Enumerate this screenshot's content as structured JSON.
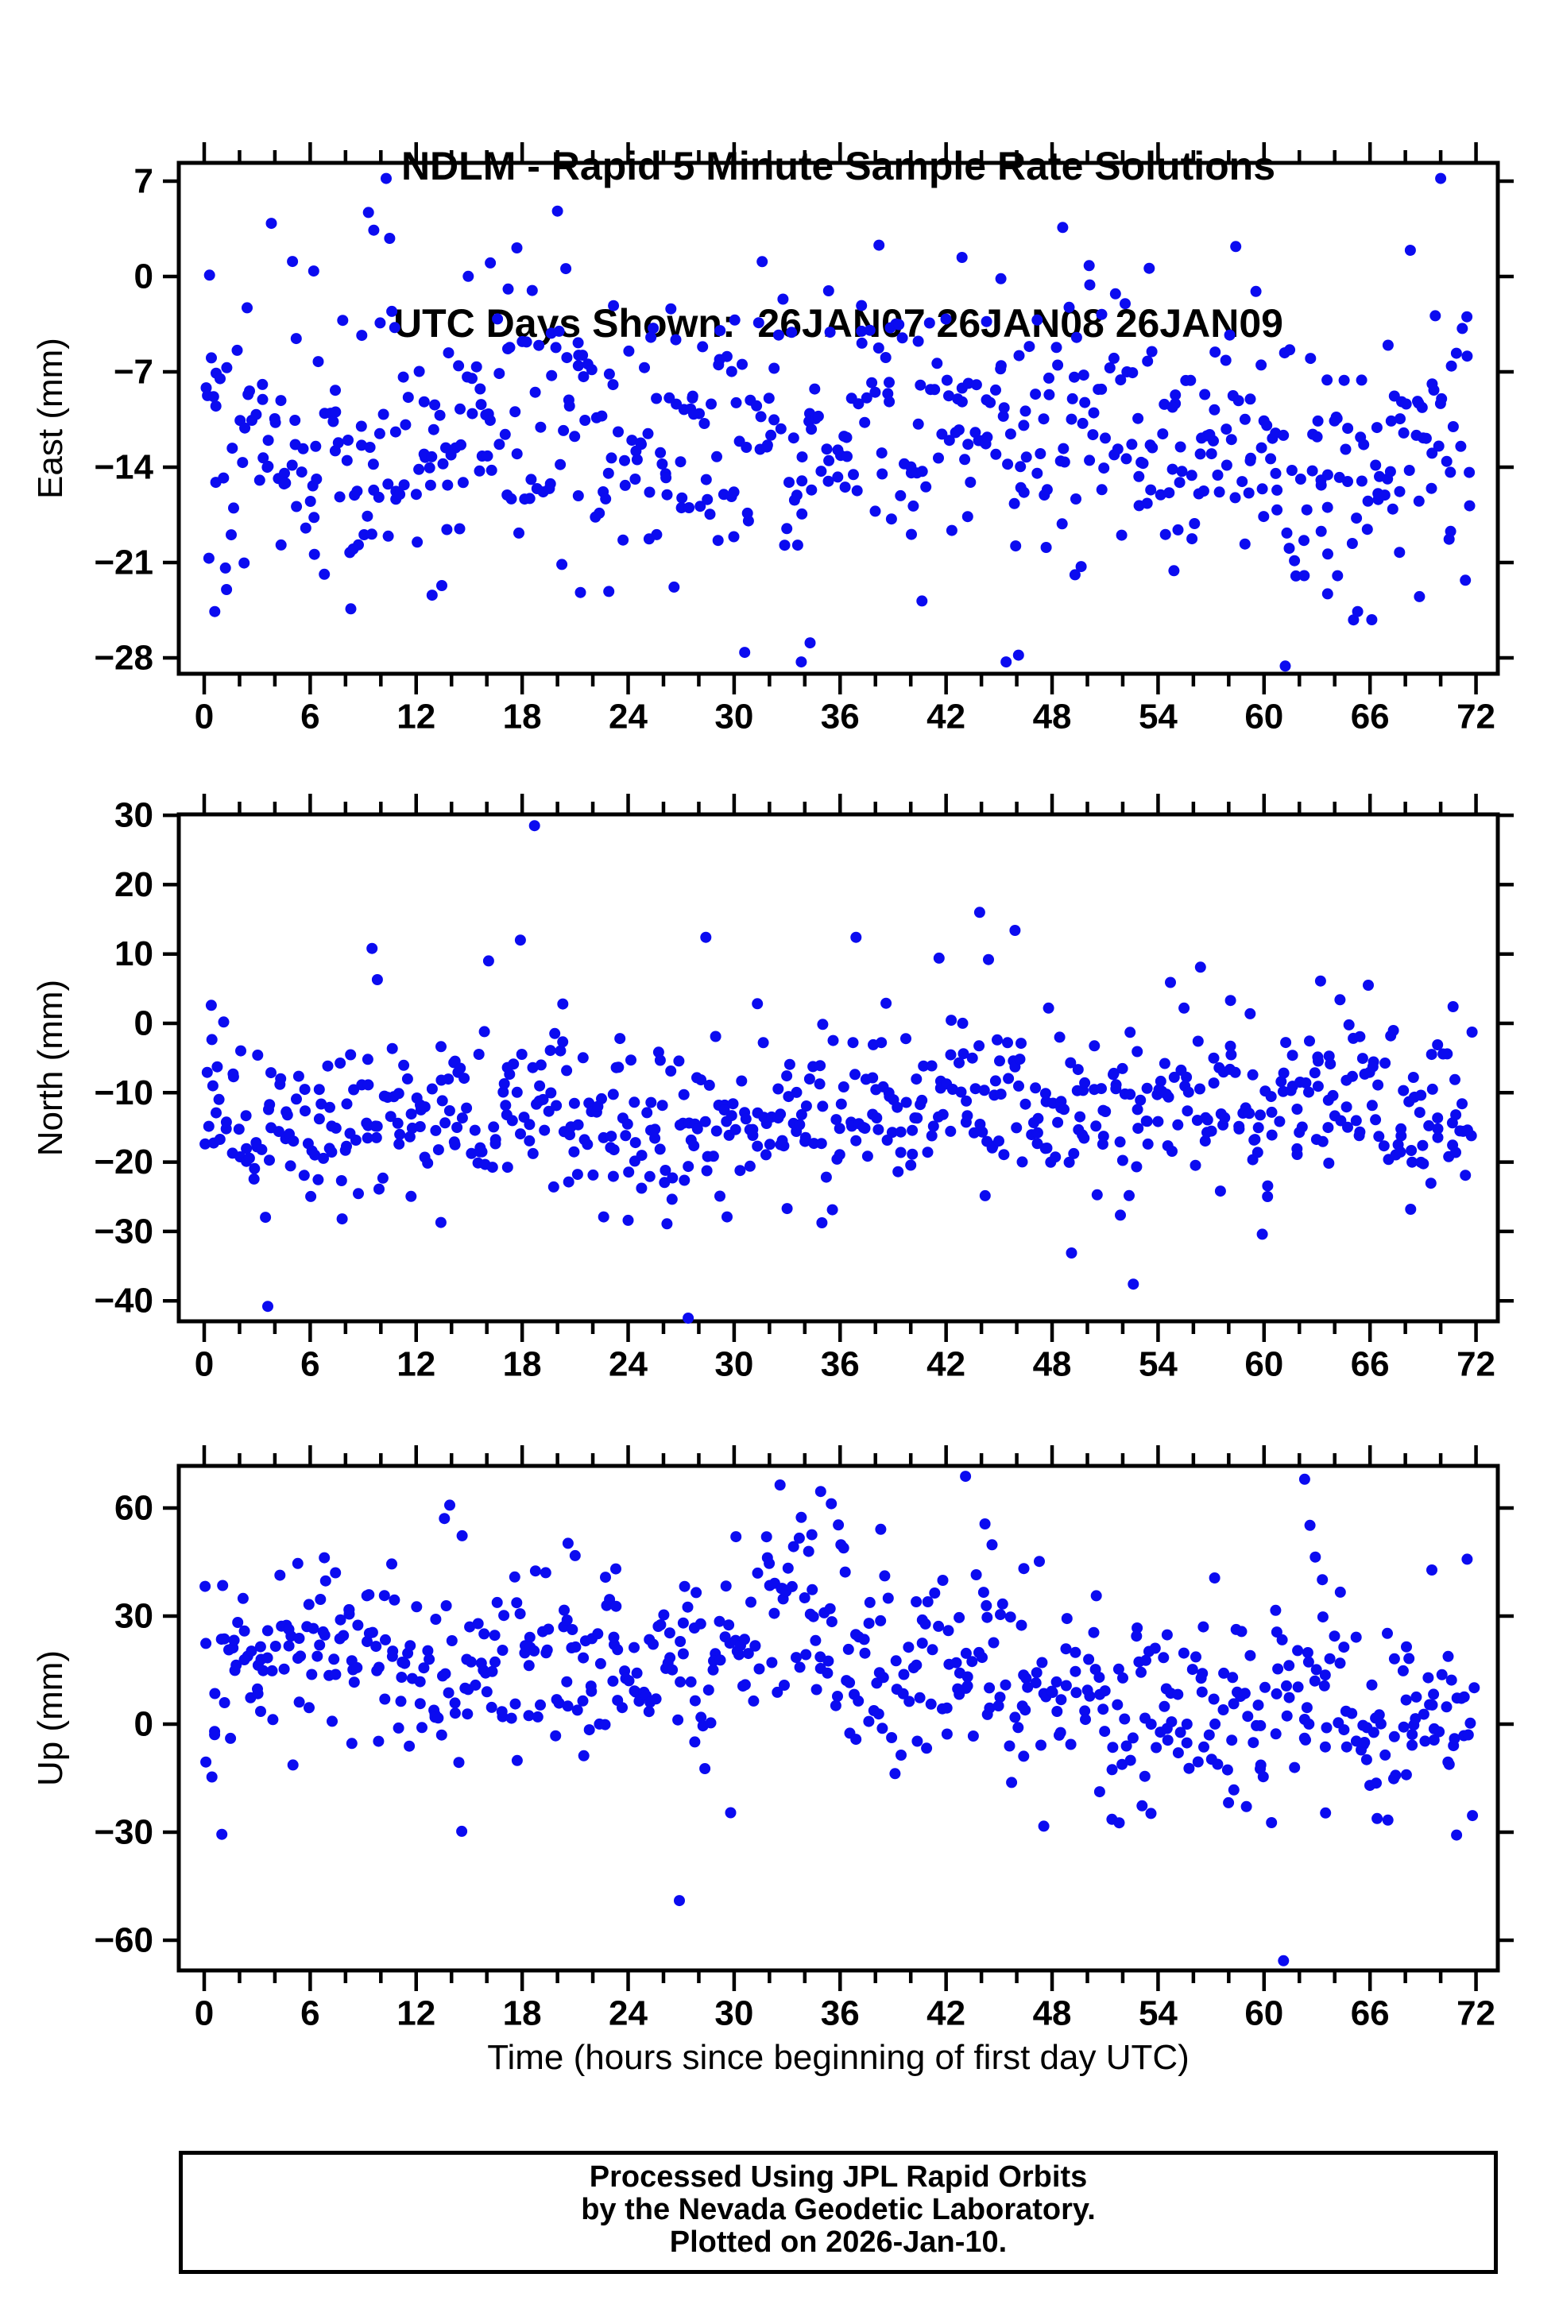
{
  "title_line1": "NDLM - Rapid 5 Minute Sample Rate Solutions",
  "title_line2": "UTC Days Shown:  26JAN07 26JAN08 26JAN09",
  "footer": {
    "line1": "Processed Using JPL Rapid Orbits",
    "line2": "by the Nevada Geodetic Laboratory.",
    "line3": "Plotted on 2026-Jan-10."
  },
  "chart_data": {
    "type": "scatter",
    "title": "NDLM - Rapid 5 Minute Sample Rate Solutions",
    "subtitle": "UTC Days Shown:  26JAN07 26JAN08 26JAN09",
    "xlabel": "Time (hours since beginning of first day UTC)",
    "point_color": "#0b0bf0",
    "frame_color": "#000000",
    "grid": false,
    "x_axis": {
      "min": -1.4,
      "max": 73.2,
      "major_ticks": [
        0,
        6,
        12,
        18,
        24,
        30,
        36,
        42,
        48,
        54,
        60,
        66,
        72
      ],
      "minor_step": 2,
      "units": "hours"
    },
    "panels": [
      {
        "id": "east",
        "ylabel": "East (mm)",
        "ylim": [
          -29.2,
          8.3
        ],
        "yticks": [
          7,
          0,
          -7,
          -14,
          -21,
          -28
        ],
        "cloud": {
          "count": 600,
          "seed": 42,
          "sd": 4.8,
          "clamp": [
            -26.8,
            5.2
          ],
          "mean_points": [
            [
              0,
              -11.8
            ],
            [
              4,
              -12.5
            ],
            [
              8,
              -13.8
            ],
            [
              12,
              -12.2
            ],
            [
              16,
              -10.8
            ],
            [
              20,
              -9.8
            ],
            [
              24,
              -11.2
            ],
            [
              28,
              -12.4
            ],
            [
              32,
              -12.8
            ],
            [
              36,
              -11.6
            ],
            [
              40,
              -11.0
            ],
            [
              44,
              -11.4
            ],
            [
              48,
              -10.2
            ],
            [
              52,
              -12.0
            ],
            [
              56,
              -13.2
            ],
            [
              60,
              -14.2
            ],
            [
              64,
              -14.8
            ],
            [
              68,
              -12.0
            ],
            [
              72,
              -9.8
            ]
          ]
        },
        "outliers": [
          [
            0.3,
            0.1
          ],
          [
            0.6,
            -24.6
          ],
          [
            1.2,
            -21.4
          ],
          [
            3.8,
            3.9
          ],
          [
            5.0,
            1.1
          ],
          [
            6.2,
            0.4
          ],
          [
            8.3,
            -24.4
          ],
          [
            9.3,
            4.7
          ],
          [
            9.6,
            3.4
          ],
          [
            10.3,
            7.2
          ],
          [
            10.5,
            2.8
          ],
          [
            12.9,
            -23.4
          ],
          [
            16.2,
            1.0
          ],
          [
            17.7,
            2.1
          ],
          [
            20.0,
            4.8
          ],
          [
            21.3,
            -23.2
          ],
          [
            26.6,
            -22.8
          ],
          [
            30.6,
            -27.6
          ],
          [
            33.8,
            -28.3
          ],
          [
            34.3,
            -26.9
          ],
          [
            38.2,
            2.3
          ],
          [
            42.9,
            1.4
          ],
          [
            45.4,
            -28.3
          ],
          [
            46.1,
            -27.8
          ],
          [
            48.6,
            3.6
          ],
          [
            49.3,
            -21.9
          ],
          [
            50.1,
            0.8
          ],
          [
            53.5,
            0.6
          ],
          [
            54.9,
            -21.6
          ],
          [
            58.4,
            2.2
          ],
          [
            61.2,
            -28.6
          ],
          [
            63.6,
            -23.3
          ],
          [
            65.3,
            -24.6
          ],
          [
            66.1,
            -25.2
          ],
          [
            68.8,
            -23.5
          ],
          [
            70.0,
            7.2
          ],
          [
            71.4,
            -22.3
          ]
        ]
      },
      {
        "id": "north",
        "ylabel": "North (mm)",
        "ylim": [
          -43.0,
          30.1
        ],
        "yticks": [
          30,
          20,
          10,
          0,
          -10,
          -20,
          -30,
          -40
        ],
        "cloud": {
          "count": 600,
          "seed": 77,
          "sd": 5.8,
          "clamp": [
            -28.8,
            3.2
          ],
          "mean_points": [
            [
              0,
              -12.5
            ],
            [
              4,
              -15.0
            ],
            [
              8,
              -14.0
            ],
            [
              12,
              -14.5
            ],
            [
              16,
              -13.0
            ],
            [
              20,
              -12.0
            ],
            [
              24,
              -14.0
            ],
            [
              28,
              -13.5
            ],
            [
              32,
              -14.5
            ],
            [
              36,
              -12.5
            ],
            [
              40,
              -11.0
            ],
            [
              44,
              -10.5
            ],
            [
              48,
              -13.0
            ],
            [
              52,
              -13.5
            ],
            [
              56,
              -12.0
            ],
            [
              60,
              -12.5
            ],
            [
              64,
              -11.0
            ],
            [
              68,
              -13.0
            ],
            [
              72,
              -13.5
            ]
          ]
        },
        "outliers": [
          [
            0.4,
            2.6
          ],
          [
            1.1,
            0.2
          ],
          [
            3.6,
            -40.8
          ],
          [
            9.5,
            10.8
          ],
          [
            9.8,
            6.3
          ],
          [
            13.4,
            -28.7
          ],
          [
            16.1,
            9.0
          ],
          [
            17.9,
            12.0
          ],
          [
            18.7,
            28.5
          ],
          [
            20.3,
            2.8
          ],
          [
            24.0,
            -28.4
          ],
          [
            26.2,
            -28.9
          ],
          [
            27.4,
            -42.5
          ],
          [
            28.4,
            12.4
          ],
          [
            29.6,
            -27.9
          ],
          [
            33.0,
            -26.7
          ],
          [
            36.9,
            12.4
          ],
          [
            38.6,
            2.9
          ],
          [
            41.6,
            9.4
          ],
          [
            43.9,
            16.0
          ],
          [
            44.4,
            9.2
          ],
          [
            45.9,
            13.4
          ],
          [
            47.8,
            2.2
          ],
          [
            49.1,
            -33.1
          ],
          [
            52.6,
            -37.6
          ],
          [
            54.7,
            5.9
          ],
          [
            56.4,
            8.1
          ],
          [
            58.1,
            3.3
          ],
          [
            59.9,
            -30.4
          ],
          [
            63.2,
            6.1
          ],
          [
            64.3,
            3.4
          ],
          [
            65.9,
            5.5
          ],
          [
            68.3,
            -26.8
          ],
          [
            70.7,
            2.4
          ],
          [
            71.4,
            -21.9
          ]
        ]
      },
      {
        "id": "up",
        "ylabel": "Up (mm)",
        "ylim": [
          -68.4,
          71.7
        ],
        "yticks": [
          60,
          30,
          0,
          -30,
          -60
        ],
        "cloud": {
          "count": 600,
          "seed": 13,
          "sd": 12.5,
          "clamp": [
            -32,
            56
          ],
          "mean_points": [
            [
              0,
              6
            ],
            [
              2,
              12
            ],
            [
              6,
              17
            ],
            [
              10,
              20
            ],
            [
              14,
              15
            ],
            [
              18,
              20
            ],
            [
              22,
              14
            ],
            [
              26,
              17
            ],
            [
              30,
              24
            ],
            [
              33,
              29
            ],
            [
              35,
              26
            ],
            [
              37,
              16
            ],
            [
              40,
              15
            ],
            [
              42,
              18
            ],
            [
              44,
              19
            ],
            [
              46,
              13
            ],
            [
              48,
              9
            ],
            [
              50,
              5
            ],
            [
              52,
              2
            ],
            [
              54,
              6
            ],
            [
              56,
              2
            ],
            [
              58,
              6
            ],
            [
              60,
              1
            ],
            [
              62,
              7
            ],
            [
              64,
              4
            ],
            [
              66,
              1
            ],
            [
              68,
              7
            ],
            [
              70,
              3
            ],
            [
              72,
              -1
            ]
          ]
        },
        "outliers": [
          [
            1.0,
            -30.6
          ],
          [
            2.2,
            34.9
          ],
          [
            5.3,
            44.6
          ],
          [
            6.8,
            46.2
          ],
          [
            13.6,
            57.1
          ],
          [
            13.9,
            60.8
          ],
          [
            14.6,
            52.3
          ],
          [
            20.6,
            50.2
          ],
          [
            21.0,
            46.8
          ],
          [
            23.3,
            43.1
          ],
          [
            26.9,
            -49.0
          ],
          [
            29.8,
            -24.6
          ],
          [
            32.6,
            66.4
          ],
          [
            33.8,
            57.4
          ],
          [
            34.4,
            52.6
          ],
          [
            34.9,
            64.6
          ],
          [
            35.5,
            61.2
          ],
          [
            35.9,
            55.3
          ],
          [
            36.2,
            48.9
          ],
          [
            38.3,
            54.1
          ],
          [
            43.1,
            68.8
          ],
          [
            44.2,
            55.6
          ],
          [
            44.6,
            49.8
          ],
          [
            46.4,
            43.2
          ],
          [
            51.8,
            -27.4
          ],
          [
            53.6,
            -24.8
          ],
          [
            57.2,
            40.6
          ],
          [
            59.0,
            -22.9
          ],
          [
            61.1,
            -65.7
          ],
          [
            62.3,
            68.0
          ],
          [
            62.6,
            55.2
          ],
          [
            62.9,
            46.4
          ],
          [
            63.3,
            40.1
          ],
          [
            66.4,
            -26.2
          ],
          [
            69.5,
            42.8
          ],
          [
            70.9,
            -30.8
          ],
          [
            71.5,
            45.8
          ],
          [
            71.8,
            -25.4
          ]
        ]
      }
    ]
  }
}
